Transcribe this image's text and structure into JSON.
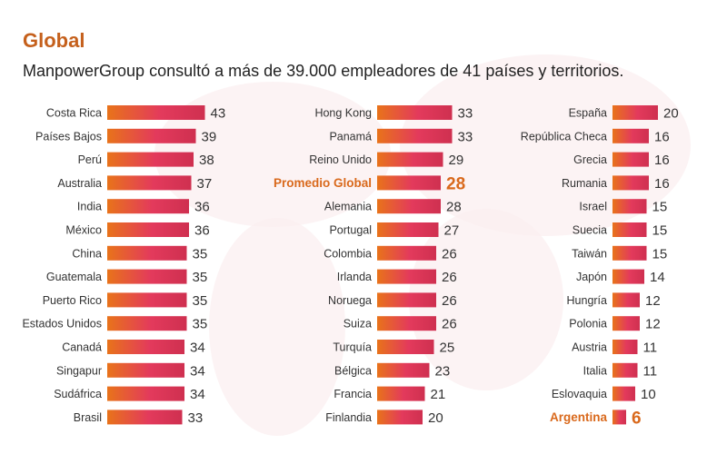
{
  "chart_data": {
    "type": "bar",
    "orientation": "horizontal",
    "title": "Global",
    "subtitle": "ManpowerGroup consultó a más de 39.000 empleadores de 41 países y territorios.",
    "colors": {
      "title": "#c5601c",
      "highlight": "#d9691c",
      "bar_start": "#e8731a",
      "bar_mid": "#e33a5c",
      "bar_end": "#cf3050"
    },
    "columns": [
      [
        {
          "label": "Costa Rica",
          "value": 43
        },
        {
          "label": "Países Bajos",
          "value": 39
        },
        {
          "label": "Perú",
          "value": 38
        },
        {
          "label": "Australia",
          "value": 37
        },
        {
          "label": "India",
          "value": 36
        },
        {
          "label": "México",
          "value": 36
        },
        {
          "label": "China",
          "value": 35
        },
        {
          "label": "Guatemala",
          "value": 35
        },
        {
          "label": "Puerto Rico",
          "value": 35
        },
        {
          "label": "Estados Unidos",
          "value": 35
        },
        {
          "label": "Canadá",
          "value": 34
        },
        {
          "label": "Singapur",
          "value": 34
        },
        {
          "label": "Sudáfrica",
          "value": 34
        },
        {
          "label": "Brasil",
          "value": 33
        }
      ],
      [
        {
          "label": "Hong Kong",
          "value": 33
        },
        {
          "label": "Panamá",
          "value": 33
        },
        {
          "label": "Reino Unido",
          "value": 29
        },
        {
          "label": "Promedio Global",
          "value": 28,
          "highlight": true
        },
        {
          "label": "Alemania",
          "value": 28
        },
        {
          "label": "Portugal",
          "value": 27
        },
        {
          "label": "Colombia",
          "value": 26
        },
        {
          "label": "Irlanda",
          "value": 26
        },
        {
          "label": "Noruega",
          "value": 26
        },
        {
          "label": "Suiza",
          "value": 26
        },
        {
          "label": "Turquía",
          "value": 25
        },
        {
          "label": "Bélgica",
          "value": 23
        },
        {
          "label": "Francia",
          "value": 21
        },
        {
          "label": "Finlandia",
          "value": 20
        }
      ],
      [
        {
          "label": "España",
          "value": 20
        },
        {
          "label": "República Checa",
          "value": 16
        },
        {
          "label": "Grecia",
          "value": 16
        },
        {
          "label": "Rumania",
          "value": 16
        },
        {
          "label": "Israel",
          "value": 15
        },
        {
          "label": "Suecia",
          "value": 15
        },
        {
          "label": "Taiwán",
          "value": 15
        },
        {
          "label": "Japón",
          "value": 14
        },
        {
          "label": "Hungría",
          "value": 12
        },
        {
          "label": "Polonia",
          "value": 12
        },
        {
          "label": "Austria",
          "value": 11
        },
        {
          "label": "Italia",
          "value": 11
        },
        {
          "label": "Eslovaquia",
          "value": 10
        },
        {
          "label": "Argentina",
          "value": 6,
          "highlight": true
        }
      ]
    ]
  }
}
